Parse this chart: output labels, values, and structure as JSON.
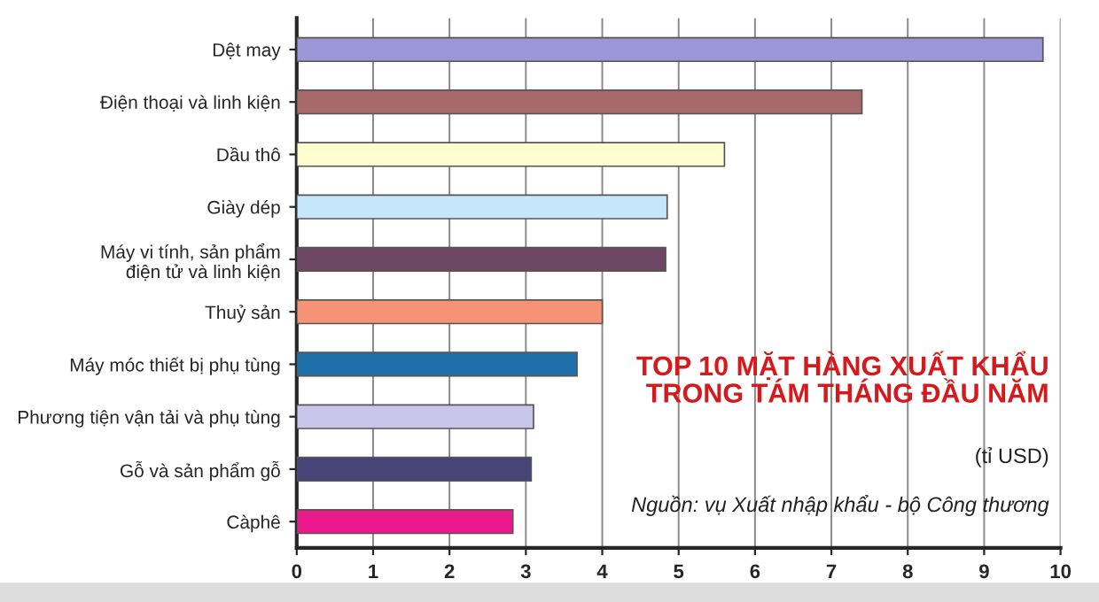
{
  "chart_data": {
    "type": "bar",
    "orientation": "horizontal",
    "title": "TOP 10 MẶT HÀNG XUẤT KHẨU\nTRONG TÁM THÁNG ĐẦU NĂM",
    "annotations": [
      "(tỉ USD)",
      "Nguồn: vụ Xuất nhập khẩu - bộ Công thương"
    ],
    "categories": [
      "Dệt may",
      "Điện thoại và linh kiện",
      "Dầu thô",
      "Giày dép",
      "Máy vi tính, sản phẩm\nđiện tử và linh kiện",
      "Thuỷ sản",
      "Máy móc thiết bị phụ tùng",
      "Phương tiện vận tải và phụ tùng",
      "Gỗ và sản phẩm gỗ",
      "Càphê"
    ],
    "values": [
      9.77,
      7.4,
      5.6,
      4.85,
      4.83,
      4.0,
      3.67,
      3.1,
      3.07,
      2.83
    ],
    "colors": [
      "#9b96d6",
      "#a8696a",
      "#fffcd0",
      "#c6e6fb",
      "#6e4764",
      "#f59374",
      "#1f6fa8",
      "#c9c6ec",
      "#484477",
      "#ea1a8c"
    ],
    "xlim": [
      0,
      10
    ],
    "xticks": [
      0,
      1,
      2,
      3,
      4,
      5,
      6,
      7,
      8,
      9,
      10
    ],
    "grid": "x",
    "legend": false
  }
}
